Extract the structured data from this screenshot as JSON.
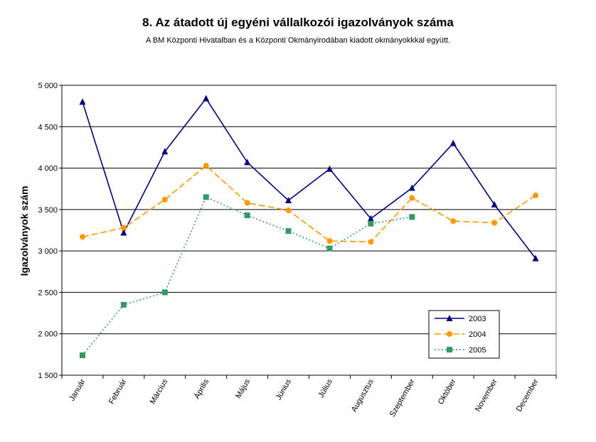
{
  "chart_data": {
    "type": "line",
    "title": "8. Az átadott új egyéni vállalkozói  igazolványok száma",
    "subtitle": "A BM Központi Hivatalban és a Központi Okmányirodában kiadott okmányokkkal együtt.",
    "ylabel": "Igazolványok szám",
    "xlabel": "",
    "categories": [
      "Január",
      "Február",
      "Március",
      "Április",
      "Május",
      "Június",
      "Július",
      "Augusztus",
      "Szeptember",
      "Október",
      "November",
      "December"
    ],
    "ylim": [
      1500,
      5000
    ],
    "yticks": [
      1500,
      2000,
      2500,
      3000,
      3500,
      4000,
      4500,
      5000
    ],
    "ytick_labels": [
      "1 500",
      "2 000",
      "2 500",
      "3 000",
      "3 500",
      "4 000",
      "4 500",
      "5 000"
    ],
    "grid": true,
    "legend_position": "bottom-right",
    "series": [
      {
        "name": "2003",
        "color": "#000080",
        "marker": "triangle",
        "dash": "solid",
        "values": [
          4800,
          3220,
          4200,
          4840,
          4070,
          3610,
          3990,
          3390,
          3760,
          4300,
          3560,
          2910
        ]
      },
      {
        "name": "2004",
        "color": "#FF9900",
        "marker": "circle",
        "dash": "dashed",
        "values": [
          3170,
          3280,
          3620,
          4030,
          3580,
          3490,
          3120,
          3110,
          3640,
          3360,
          3340,
          3670
        ]
      },
      {
        "name": "2005",
        "color": "#339966",
        "marker": "square",
        "dash": "dotted",
        "values": [
          1740,
          2350,
          2500,
          3650,
          3430,
          3240,
          3030,
          3330,
          3410,
          null,
          null,
          null
        ]
      }
    ]
  }
}
